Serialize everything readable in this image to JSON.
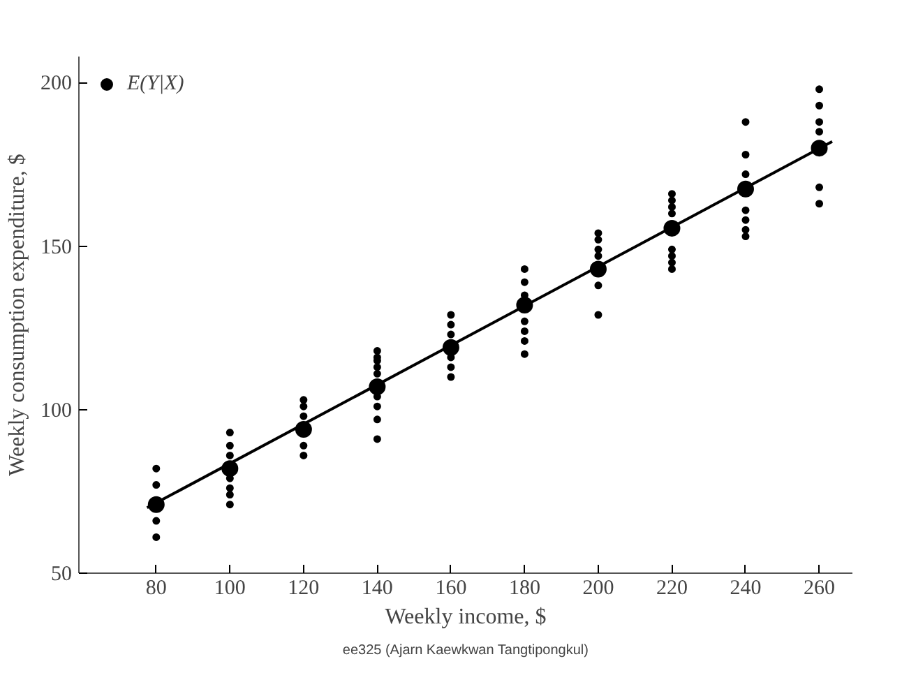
{
  "chart_data": {
    "type": "scatter",
    "xlabel": "Weekly income, $",
    "ylabel": "Weekly consumption expenditure, $",
    "annotations": [
      "ee325 (Ajarn Kaewkwan Tangtipongkul)"
    ],
    "series": [
      {
        "color": "#000000",
        "marker": "circle",
        "x": [
          80,
          80,
          80,
          80,
          100,
          100,
          100,
          100,
          100,
          100,
          100,
          120,
          120,
          120,
          120,
          120,
          140,
          140,
          140,
          140,
          140,
          140,
          140,
          140,
          140,
          160,
          160,
          160,
          160,
          160,
          160,
          180,
          180,
          180,
          180,
          180,
          180,
          180,
          200,
          200,
          200,
          200,
          200,
          200,
          220,
          220,
          220,
          220,
          220,
          220,
          220,
          220,
          240,
          240,
          240,
          240,
          240,
          240,
          240,
          260,
          260,
          260,
          260,
          260,
          260
        ],
        "values": [
          82,
          77,
          66,
          61,
          93,
          89,
          86,
          79,
          76,
          74,
          71,
          103,
          101,
          98,
          89,
          86,
          118,
          116,
          115,
          113,
          111,
          104,
          101,
          97,
          91,
          129,
          126,
          123,
          116,
          113,
          110,
          143,
          139,
          135,
          127,
          124,
          121,
          117,
          154,
          152,
          149,
          147,
          138,
          129,
          166,
          164,
          162,
          160,
          149,
          147,
          145,
          143,
          188,
          178,
          172,
          161,
          158,
          155,
          153,
          198,
          193,
          188,
          185,
          168,
          163
        ]
      },
      {
        "name": "E(Y|X)",
        "color": "#000000",
        "marker": "circle",
        "x": [
          80,
          100,
          120,
          140,
          160,
          180,
          200,
          220,
          240,
          260
        ],
        "values": [
          71,
          82,
          94,
          107,
          119,
          132,
          143,
          155.5,
          167.5,
          180
        ]
      },
      {
        "type": "line",
        "color": "#000000",
        "x": [
          77.5,
          263.5
        ],
        "values": [
          70,
          182
        ]
      }
    ],
    "xlim": [
      59,
      269
    ],
    "ylim": [
      50,
      208
    ],
    "xticks": [
      80,
      100,
      120,
      140,
      160,
      180,
      200,
      220,
      240,
      260
    ],
    "yticks": [
      50,
      100,
      150,
      200
    ],
    "grid": false,
    "legend": "top left",
    "line_style": "solid"
  }
}
